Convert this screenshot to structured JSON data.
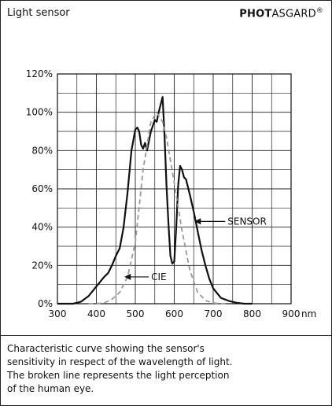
{
  "header": {
    "title": "Light sensor",
    "brand_bold": "PHOT",
    "brand_regular": "ASGARD",
    "brand_mark": "®"
  },
  "caption": {
    "lines": [
      "Characteristic curve showing the sensor's",
      "sensitivity in respect of the wavelength of light.",
      "The broken line represents the light perception",
      "of the human eye."
    ]
  },
  "chart_data": {
    "type": "line",
    "x_unit": "nm",
    "xlim": [
      300,
      900
    ],
    "ylim": [
      0,
      120
    ],
    "x_ticks": [
      300,
      400,
      500,
      600,
      700,
      800,
      900
    ],
    "y_ticks": [
      0,
      20,
      40,
      60,
      80,
      100,
      120
    ],
    "y_tick_labels": [
      "0%",
      "20%",
      "40%",
      "60%",
      "80%",
      "100%",
      "120%"
    ],
    "grid": true,
    "series": [
      {
        "name": "SENSOR",
        "style": "solid",
        "color": "#111111",
        "x": [
          300,
          340,
          360,
          380,
          400,
          420,
          430,
          440,
          450,
          460,
          470,
          480,
          490,
          500,
          505,
          510,
          515,
          520,
          525,
          530,
          535,
          540,
          545,
          550,
          555,
          560,
          565,
          570,
          575,
          580,
          585,
          590,
          595,
          600,
          605,
          610,
          615,
          620,
          625,
          630,
          640,
          650,
          660,
          670,
          680,
          690,
          700,
          720,
          740,
          760,
          780,
          800
        ],
        "y": [
          0,
          0,
          1,
          4,
          9,
          14,
          16,
          20,
          25,
          29,
          40,
          58,
          80,
          91,
          92,
          90,
          83,
          81,
          84,
          80,
          85,
          90,
          93,
          96,
          95,
          100,
          104,
          108,
          88,
          62,
          42,
          25,
          21,
          22,
          40,
          62,
          72,
          70,
          66,
          65,
          57,
          48,
          38,
          28,
          20,
          13,
          8,
          3,
          1.5,
          0.5,
          0,
          0
        ]
      },
      {
        "name": "CIE",
        "style": "dashed",
        "color": "#999999",
        "x": [
          380,
          400,
          420,
          440,
          460,
          480,
          500,
          520,
          540,
          555,
          570,
          580,
          600,
          620,
          640,
          660,
          680,
          700,
          720,
          740
        ],
        "y": [
          0,
          0.1,
          0.4,
          2.3,
          6,
          14,
          32,
          70,
          95,
          100,
          95,
          87,
          63,
          38,
          17.5,
          6,
          1.7,
          0.4,
          0.1,
          0
        ]
      }
    ],
    "annotations": [
      {
        "text": "SENSOR",
        "series": "SENSOR",
        "at_x": 650,
        "at_y": 43
      },
      {
        "text": "CIE",
        "series": "CIE",
        "at_x": 470,
        "at_y": 14
      }
    ]
  }
}
